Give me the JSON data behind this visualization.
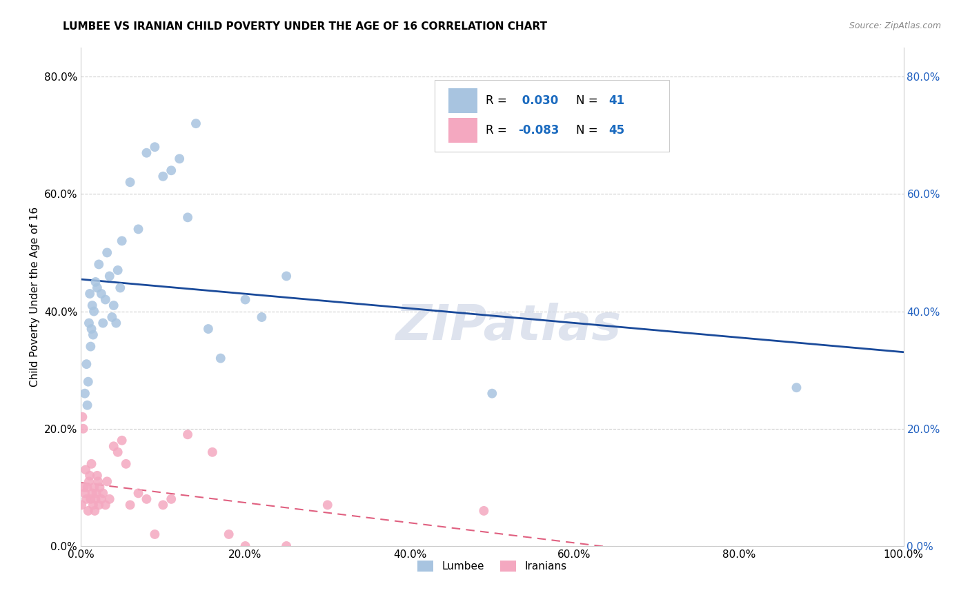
{
  "title": "LUMBEE VS IRANIAN CHILD POVERTY UNDER THE AGE OF 16 CORRELATION CHART",
  "source": "Source: ZipAtlas.com",
  "ylabel": "Child Poverty Under the Age of 16",
  "xlim": [
    0.0,
    1.0
  ],
  "ylim": [
    0.0,
    0.85
  ],
  "yticks": [
    0.0,
    0.2,
    0.4,
    0.6,
    0.8
  ],
  "ytick_labels": [
    "0.0%",
    "20.0%",
    "40.0%",
    "60.0%",
    "80.0%"
  ],
  "xticks": [
    0.0,
    0.2,
    0.4,
    0.6,
    0.8,
    1.0
  ],
  "xtick_labels": [
    "0.0%",
    "20.0%",
    "40.0%",
    "60.0%",
    "80.0%",
    "100.0%"
  ],
  "lumbee_color": "#a8c4e0",
  "iranian_color": "#f4a8c0",
  "lumbee_line_color": "#1a4a9a",
  "iranian_line_color": "#e06080",
  "lumbee_R": 0.03,
  "lumbee_N": 41,
  "iranian_R": -0.083,
  "iranian_N": 45,
  "lumbee_x": [
    0.005,
    0.007,
    0.008,
    0.009,
    0.01,
    0.011,
    0.012,
    0.013,
    0.014,
    0.015,
    0.016,
    0.018,
    0.02,
    0.022,
    0.025,
    0.027,
    0.03,
    0.032,
    0.035,
    0.038,
    0.04,
    0.043,
    0.045,
    0.048,
    0.05,
    0.06,
    0.07,
    0.08,
    0.09,
    0.1,
    0.11,
    0.12,
    0.13,
    0.14,
    0.155,
    0.17,
    0.2,
    0.22,
    0.25,
    0.5,
    0.87
  ],
  "lumbee_y": [
    0.26,
    0.31,
    0.24,
    0.28,
    0.38,
    0.43,
    0.34,
    0.37,
    0.41,
    0.36,
    0.4,
    0.45,
    0.44,
    0.48,
    0.43,
    0.38,
    0.42,
    0.5,
    0.46,
    0.39,
    0.41,
    0.38,
    0.47,
    0.44,
    0.52,
    0.62,
    0.54,
    0.67,
    0.68,
    0.63,
    0.64,
    0.66,
    0.56,
    0.72,
    0.37,
    0.32,
    0.42,
    0.39,
    0.46,
    0.26,
    0.27
  ],
  "iranian_x": [
    0.001,
    0.002,
    0.003,
    0.004,
    0.005,
    0.006,
    0.007,
    0.008,
    0.009,
    0.01,
    0.011,
    0.012,
    0.013,
    0.014,
    0.015,
    0.016,
    0.017,
    0.018,
    0.019,
    0.02,
    0.021,
    0.022,
    0.023,
    0.025,
    0.027,
    0.03,
    0.032,
    0.035,
    0.04,
    0.045,
    0.05,
    0.055,
    0.06,
    0.07,
    0.08,
    0.09,
    0.1,
    0.11,
    0.13,
    0.16,
    0.18,
    0.2,
    0.25,
    0.3,
    0.49
  ],
  "iranian_y": [
    0.07,
    0.22,
    0.2,
    0.1,
    0.09,
    0.13,
    0.08,
    0.1,
    0.06,
    0.11,
    0.12,
    0.08,
    0.14,
    0.09,
    0.07,
    0.1,
    0.06,
    0.08,
    0.09,
    0.12,
    0.11,
    0.07,
    0.1,
    0.08,
    0.09,
    0.07,
    0.11,
    0.08,
    0.17,
    0.16,
    0.18,
    0.14,
    0.07,
    0.09,
    0.08,
    0.02,
    0.07,
    0.08,
    0.19,
    0.16,
    0.02,
    0.0,
    0.0,
    0.07,
    0.06
  ],
  "watermark": "ZIPatlas"
}
